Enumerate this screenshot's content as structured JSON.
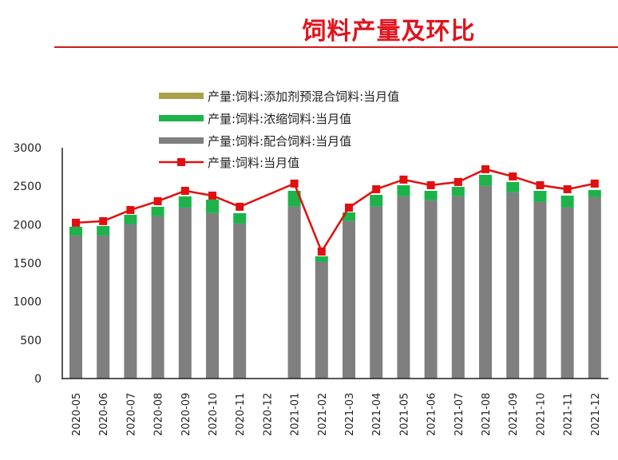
{
  "title": "饲料产量及环比",
  "chart_data": {
    "type": "bar",
    "stacked": true,
    "title": "饲料产量及环比",
    "categories": [
      "2020-05",
      "2020-06",
      "2020-07",
      "2020-08",
      "2020-09",
      "2020-10",
      "2020-11",
      "2020-12",
      "2021-01",
      "2021-02",
      "2021-03",
      "2021-04",
      "2021-05",
      "2021-06",
      "2021-07",
      "2021-08",
      "2021-09",
      "2021-10",
      "2021-11",
      "2021-12"
    ],
    "ylim": [
      0,
      3000
    ],
    "yticks": [
      0,
      500,
      1000,
      1500,
      2000,
      2500,
      3000
    ],
    "grid": false,
    "legend_position": "top",
    "series": [
      {
        "name": "产量:饲料:添加剂预混合饲料:当月值",
        "type": "bar",
        "color": "#a9a24a",
        "values": [
          null,
          null,
          null,
          null,
          null,
          null,
          null,
          null,
          null,
          null,
          null,
          null,
          null,
          null,
          null,
          null,
          null,
          null,
          null,
          null
        ]
      },
      {
        "name": "产量:饲料:浓缩饲料:当月值",
        "type": "bar",
        "color": "#1db34a",
        "values": [
          114,
          124,
          125,
          125,
          146,
          176,
          135,
          null,
          207,
          73,
          114,
          155,
          145,
          124,
          124,
          145,
          135,
          145,
          156,
          94
        ]
      },
      {
        "name": "产量:饲料:配合饲料:当月值",
        "type": "bar",
        "color": "#7f7f7f",
        "values": [
          1859,
          1859,
          2004,
          2108,
          2222,
          2150,
          2015,
          null,
          2233,
          1516,
          2046,
          2233,
          2368,
          2316,
          2368,
          2503,
          2420,
          2295,
          2222,
          2357
        ]
      },
      {
        "name": "产量:饲料:当月值",
        "type": "line",
        "color": "#e01010",
        "values": [
          2025,
          2046,
          2191,
          2305,
          2440,
          2378,
          2233,
          null,
          2534,
          1651,
          2222,
          2461,
          2586,
          2513,
          2555,
          2721,
          2627,
          2513,
          2461,
          2534
        ]
      }
    ]
  }
}
